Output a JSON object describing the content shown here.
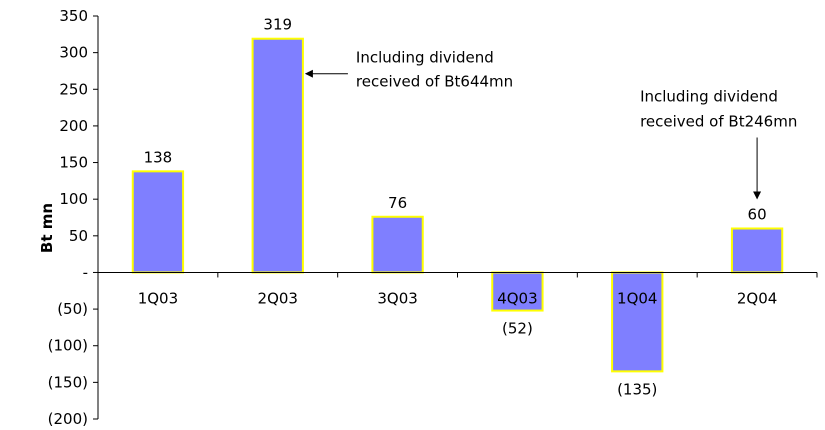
{
  "chart_data": {
    "type": "bar",
    "ylabel": "Bt mn",
    "categories": [
      "1Q03",
      "2Q03",
      "3Q03",
      "4Q03",
      "1Q04",
      "2Q04"
    ],
    "values": [
      138,
      319,
      76,
      -52,
      -135,
      60
    ],
    "data_labels": [
      "138",
      "319",
      "76",
      "(52)",
      "(135)",
      "60"
    ],
    "ylim": [
      -200,
      350
    ],
    "yticks": [
      350,
      300,
      250,
      200,
      150,
      100,
      50,
      0,
      -50,
      -100,
      -150,
      -200
    ],
    "ytick_labels": [
      "350",
      "300",
      "250",
      "200",
      "150",
      "100",
      "50",
      "-",
      "(50)",
      "(100)",
      "(150)",
      "(200)"
    ],
    "grid": false,
    "legend": "none",
    "bar_fill": "#7f7fff",
    "bar_border": "#ffff00",
    "annotations": [
      {
        "category": "2Q03",
        "lines": [
          "Including dividend",
          "received of Bt644mn"
        ]
      },
      {
        "category": "2Q04",
        "lines": [
          "Including dividend",
          "received of Bt246mn"
        ]
      }
    ]
  }
}
